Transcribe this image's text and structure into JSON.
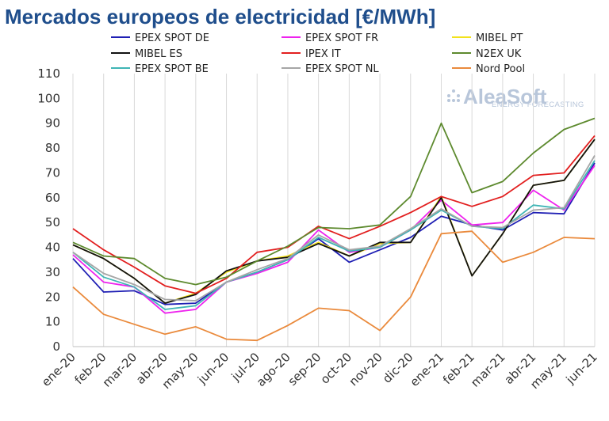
{
  "chart_data": {
    "type": "line",
    "title": "Mercados europeos de electricidad [€/MWh]",
    "xlabel": "",
    "ylabel": "",
    "ylim": [
      0,
      110
    ],
    "yticks": [
      0,
      10,
      20,
      30,
      40,
      50,
      60,
      70,
      80,
      90,
      100,
      110
    ],
    "grid": "vertical",
    "legend_position": "top",
    "categories": [
      "ene-20",
      "feb-20",
      "mar-20",
      "abr-20",
      "may-20",
      "jun-20",
      "jul-20",
      "ago-20",
      "sep-20",
      "oct-20",
      "nov-20",
      "dic-20",
      "ene-21",
      "feb-21",
      "mar-21",
      "abr-21",
      "may-21",
      "jun-21"
    ],
    "series": [
      {
        "name": "EPEX SPOT DE",
        "color": "#1f1fb4",
        "values": [
          35.5,
          22,
          22.5,
          17,
          17.5,
          26,
          30,
          35,
          43.5,
          34,
          39,
          44,
          52.5,
          49,
          47,
          54,
          53.5,
          74
        ]
      },
      {
        "name": "EPEX SPOT FR",
        "color": "#ee22ee",
        "values": [
          37,
          26,
          24,
          13.5,
          15,
          26,
          29.5,
          34,
          47,
          38,
          40,
          47,
          59,
          49,
          50,
          63,
          55,
          73
        ]
      },
      {
        "name": "MIBEL PT",
        "color": "#f2e21c",
        "values": [
          41,
          35.5,
          27.5,
          17.5,
          21.5,
          30,
          34.5,
          36.5,
          42,
          36.5,
          41.5,
          42,
          60.5,
          28.5,
          45.5,
          65,
          67,
          83.5
        ]
      },
      {
        "name": "MIBEL ES",
        "color": "#111111",
        "values": [
          41,
          35.5,
          27.5,
          17.5,
          21,
          30.5,
          34.5,
          36,
          41.5,
          36.5,
          42,
          42,
          60,
          28.5,
          45.5,
          65,
          67,
          83.5
        ]
      },
      {
        "name": "IPEX IT",
        "color": "#e21f1f",
        "values": [
          47.5,
          39,
          32,
          24.5,
          21.5,
          27.5,
          38,
          40,
          48.5,
          43.5,
          48.5,
          54,
          60.5,
          56.5,
          60.5,
          69,
          70,
          85
        ]
      },
      {
        "name": "N2EX UK",
        "color": "#5d8a2e",
        "values": [
          42,
          36.5,
          35.5,
          27.5,
          25,
          28,
          34.5,
          40.5,
          48,
          47.5,
          49,
          60.5,
          90,
          62,
          66.5,
          78,
          87.5,
          92
        ]
      },
      {
        "name": "EPEX SPOT BE",
        "color": "#3fb5b5",
        "values": [
          38,
          28,
          24,
          15,
          16.5,
          26,
          30,
          35,
          44,
          38.5,
          40,
          47,
          55,
          48.5,
          47.5,
          57,
          55.5,
          75
        ]
      },
      {
        "name": "EPEX SPOT NL",
        "color": "#a6a6a6",
        "values": [
          38,
          29.5,
          25,
          19,
          18.5,
          26,
          31,
          35.5,
          45,
          39,
          40.5,
          47.5,
          55.5,
          48.5,
          48,
          55,
          56,
          77
        ]
      },
      {
        "name": "Nord Pool",
        "color": "#ea8a3c",
        "values": [
          24,
          13,
          9,
          5,
          8,
          3,
          2.5,
          8.5,
          15.5,
          14.5,
          6.5,
          20,
          45.5,
          46.5,
          34,
          38,
          44,
          43.5
        ]
      }
    ]
  },
  "logo": {
    "main": "AleaSoft",
    "sub": "ENERGY FORECASTING"
  }
}
